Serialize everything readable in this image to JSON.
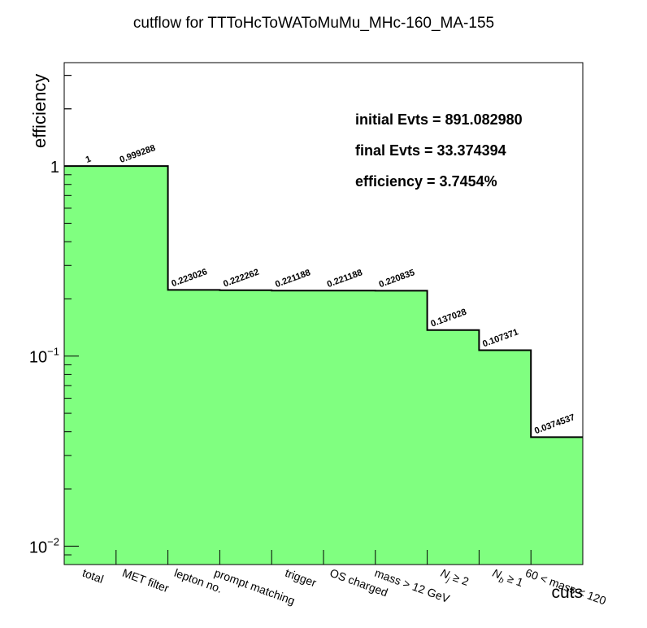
{
  "chart_data": {
    "type": "bar",
    "title": "cutflow for TTToHcToWAToMuMu_MHc-160_MA-155",
    "xlabel": "cuts",
    "ylabel": "efficiency",
    "yscale": "log",
    "ylim": [
      0.008,
      3.5
    ],
    "grid": false,
    "legend": "none",
    "fill_color": "#80ff80",
    "categories": [
      "total",
      "MET filter",
      "lepton no.",
      "prompt matching",
      "trigger",
      "OS charged",
      "mass > 12 GeV",
      "N_j ≥ 2",
      "N_b ≥ 1",
      "60 < mass < 120"
    ],
    "values": [
      1,
      0.999288,
      0.223026,
      0.222262,
      0.221188,
      0.221188,
      0.220835,
      0.137028,
      0.107371,
      0.0374537
    ],
    "value_labels": [
      "1",
      "0.999288",
      "0.223026",
      "0.222262",
      "0.221188",
      "0.221188",
      "0.220835",
      "0.137028",
      "0.107371",
      "0.0374537"
    ],
    "y_major_ticks": [
      {
        "value": 0.01,
        "base": "10",
        "exp": "−2"
      },
      {
        "value": 0.1,
        "base": "10",
        "exp": "−1"
      },
      {
        "value": 1,
        "base": "1",
        "exp": ""
      }
    ],
    "stats": [
      "initial Evts = 891.082980",
      "final Evts = 33.374394",
      "efficiency = 3.7454%"
    ]
  }
}
